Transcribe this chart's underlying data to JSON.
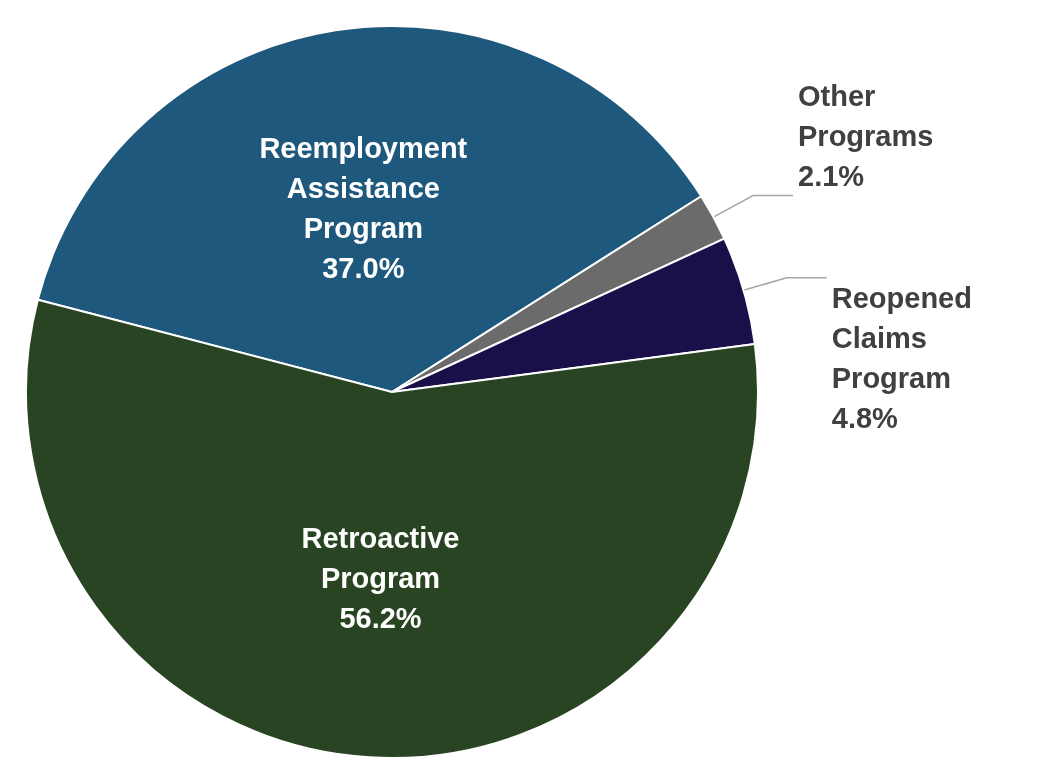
{
  "chart_data": {
    "type": "pie",
    "categories": [
      "Reemployment Assistance Program",
      "Other Programs",
      "Reopened Claims Program",
      "Retroactive Program"
    ],
    "values": [
      37.0,
      2.1,
      4.8,
      56.2
    ],
    "value_labels": [
      "37.0%",
      "2.1%",
      "4.8%",
      "56.2%"
    ],
    "colors": [
      "#1f587d",
      "#6b6b6b",
      "#1b0f4a",
      "#284422"
    ],
    "legend": false
  }
}
